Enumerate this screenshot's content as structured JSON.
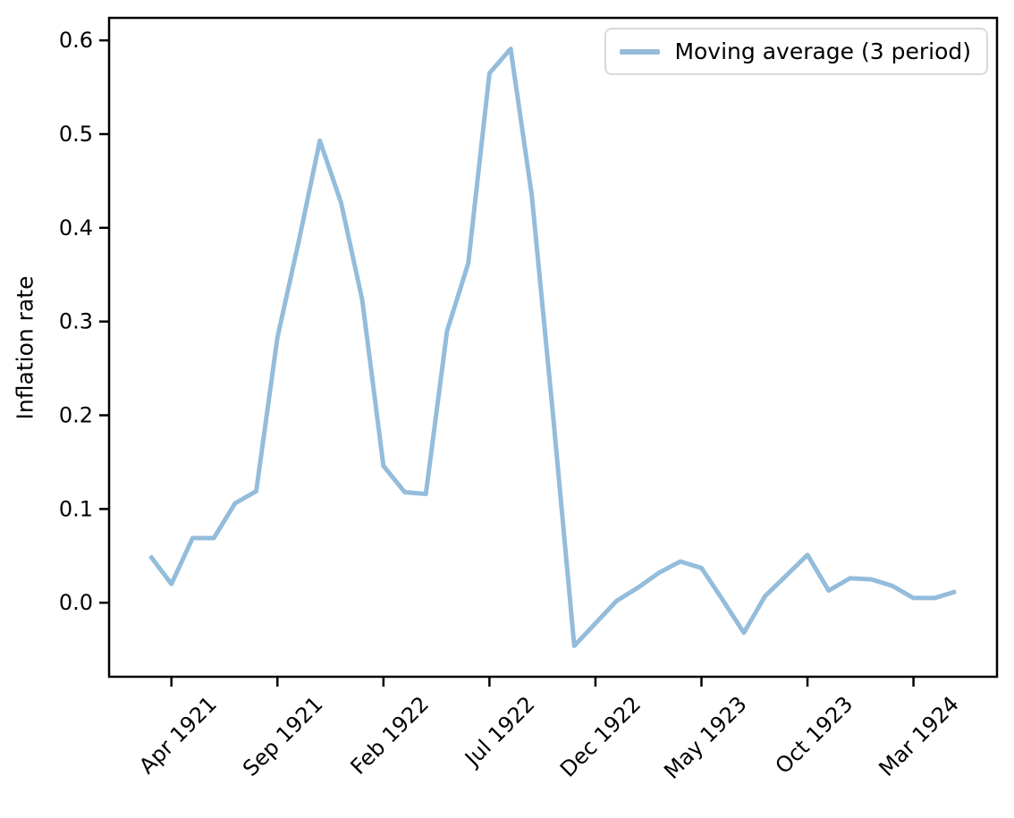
{
  "figure": {
    "background": "#ffffff",
    "axis_color": "#000000",
    "legend_border_color": "#d9d9d9"
  },
  "chart_data": {
    "type": "line",
    "title": "",
    "xlabel": "",
    "ylabel": "Inflation rate",
    "grid": false,
    "legend_position": "upper right",
    "x_tick_rotation": 45,
    "categories": [
      "Mar 1921",
      "Apr 1921",
      "May 1921",
      "Jun 1921",
      "Jul 1921",
      "Aug 1921",
      "Sep 1921",
      "Oct 1921",
      "Nov 1921",
      "Dec 1921",
      "Jan 1922",
      "Feb 1922",
      "Mar 1922",
      "Apr 1922",
      "May 1922",
      "Jun 1922",
      "Jul 1922",
      "Aug 1922",
      "Sep 1922",
      "Oct 1922",
      "Nov 1922",
      "Dec 1922",
      "Jan 1923",
      "Feb 1923",
      "Mar 1923",
      "Apr 1923",
      "May 1923",
      "Jun 1923",
      "Jul 1923",
      "Aug 1923",
      "Sep 1923",
      "Oct 1923",
      "Nov 1923",
      "Dec 1923",
      "Jan 1924",
      "Feb 1924",
      "Mar 1924",
      "Apr 1924",
      "May 1924"
    ],
    "series": [
      {
        "name": "Moving average (3 period)",
        "color": "#94bcdb",
        "line_width": 5,
        "values": [
          0.05,
          0.02,
          0.069,
          0.069,
          0.106,
          0.119,
          0.283,
          0.385,
          0.493,
          0.427,
          0.323,
          0.146,
          0.118,
          0.116,
          0.29,
          0.362,
          0.565,
          0.591,
          0.434,
          0.2,
          -0.046,
          -0.022,
          0.002,
          0.016,
          0.032,
          0.044,
          0.037,
          0.003,
          -0.032,
          0.007,
          0.029,
          0.051,
          0.013,
          0.026,
          0.025,
          0.018,
          0.005,
          0.005,
          0.012
        ]
      }
    ],
    "x_tick_labels": [
      "Apr 1921",
      "Sep 1921",
      "Feb 1922",
      "Jul 1922",
      "Dec 1922",
      "May 1923",
      "Oct 1923",
      "Mar 1924"
    ],
    "y_tick_values": [
      0.0,
      0.1,
      0.2,
      0.3,
      0.4,
      0.5,
      0.6
    ],
    "y_tick_labels": [
      "0.0",
      "0.1",
      "0.2",
      "0.3",
      "0.4",
      "0.5",
      "0.6"
    ],
    "ylim": [
      -0.079,
      0.624
    ]
  }
}
